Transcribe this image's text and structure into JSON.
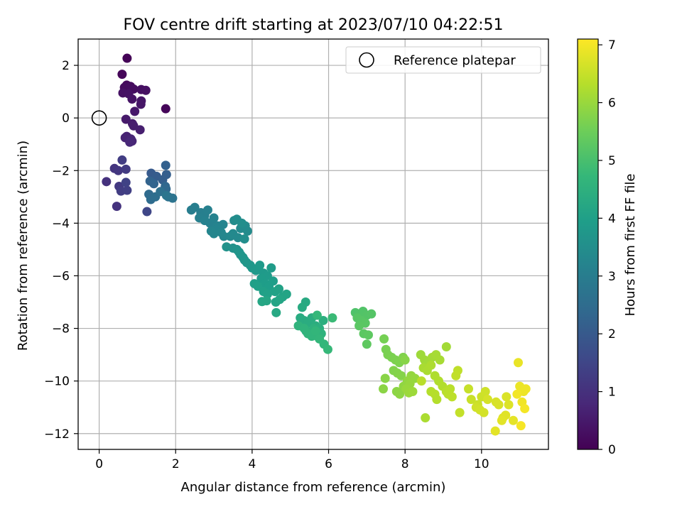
{
  "chart_data": {
    "type": "scatter",
    "title": "FOV centre drift starting at 2023/07/10 04:22:51",
    "xlabel": "Angular distance from reference (arcmin)",
    "ylabel": "Rotation from reference (arcmin)",
    "xlim": [
      -0.55,
      11.75
    ],
    "ylim": [
      -12.6,
      3.0
    ],
    "x_ticks": [
      0,
      2,
      4,
      6,
      8,
      10
    ],
    "y_ticks": [
      2,
      0,
      -2,
      -4,
      -6,
      -8,
      -10,
      -12
    ],
    "grid": true,
    "legend": {
      "position": "top-right",
      "entries": [
        "Reference platepar"
      ]
    },
    "reference_point": {
      "x": 0,
      "y": 0,
      "label": "Reference platepar"
    },
    "colorbar": {
      "label": "Hours from first FF file",
      "range": [
        0,
        7.1
      ],
      "ticks": [
        0,
        1,
        2,
        3,
        4,
        5,
        6,
        7
      ],
      "colormap": "viridis"
    },
    "colors": {
      "viridis": [
        "#440154",
        "#482878",
        "#3e4989",
        "#31688e",
        "#26828e",
        "#1f9e89",
        "#35b779",
        "#6ece58",
        "#b5de2b",
        "#fde725"
      ]
    },
    "series": [
      {
        "x": [
          0.73,
          0.6,
          0.72,
          0.66,
          0.82,
          0.9,
          1.1,
          1.22,
          0.62,
          0.77,
          0.86,
          1.1,
          1.09,
          0.93,
          1.74,
          0.7,
          0.87,
          0.9,
          1.07,
          0.72,
          0.68,
          0.83,
          0.86,
          0.8
        ],
        "y": [
          2.27,
          1.66,
          1.25,
          1.16,
          1.2,
          1.1,
          1.08,
          1.05,
          0.95,
          0.92,
          0.72,
          0.65,
          0.52,
          0.25,
          0.35,
          -0.05,
          -0.22,
          -0.3,
          -0.45,
          -0.7,
          -0.75,
          -0.8,
          -0.88,
          -0.92
        ],
        "hours": [
          0.05,
          0.1,
          0.15,
          0.2,
          0.22,
          0.25,
          0.28,
          0.3,
          0.32,
          0.35,
          0.38,
          0.4,
          0.42,
          0.45,
          0.1,
          0.5,
          0.55,
          0.58,
          0.6,
          0.65,
          0.68,
          0.72,
          0.75,
          0.8
        ]
      },
      {
        "x": [
          0.6,
          0.4,
          0.5,
          0.7,
          0.19,
          0.52,
          0.57,
          0.73,
          0.7,
          0.46,
          1.25
        ],
        "y": [
          -1.6,
          -1.92,
          -2.0,
          -1.95,
          -2.42,
          -2.6,
          -2.78,
          -2.75,
          -2.45,
          -3.36,
          -3.56
        ],
        "hours": [
          1.3,
          1.1,
          1.15,
          1.25,
          1.0,
          1.2,
          1.3,
          1.35,
          1.4,
          1.05,
          1.5
        ]
      },
      {
        "x": [
          1.36,
          1.5,
          1.66,
          1.76,
          1.74,
          1.33,
          1.43,
          1.73,
          1.75,
          1.3,
          1.35,
          1.47,
          1.6,
          1.81,
          1.92,
          1.76
        ],
        "y": [
          -2.1,
          -2.22,
          -2.35,
          -2.15,
          -1.8,
          -2.4,
          -2.5,
          -2.6,
          -2.7,
          -2.9,
          -3.1,
          -3.0,
          -2.8,
          -3.0,
          -3.05,
          -2.95
        ],
        "hours": [
          2.0,
          2.05,
          2.1,
          2.15,
          2.2,
          2.25,
          2.3,
          2.35,
          2.4,
          2.45,
          2.5,
          2.55,
          2.6,
          2.65,
          2.7,
          2.75
        ]
      },
      {
        "x": [
          2.41,
          2.5,
          2.66,
          2.76,
          2.84,
          2.62,
          2.76,
          2.9,
          3.0,
          3.09,
          3.24,
          3.1,
          2.93,
          3.0,
          3.19,
          3.26,
          3.43,
          3.5,
          3.63,
          3.7,
          3.82,
          3.88,
          3.53,
          3.6,
          3.73,
          3.8
        ],
        "y": [
          -3.5,
          -3.4,
          -3.6,
          -3.7,
          -3.5,
          -3.8,
          -3.9,
          -4.0,
          -3.8,
          -4.1,
          -4.05,
          -4.2,
          -4.3,
          -4.4,
          -4.35,
          -4.5,
          -4.5,
          -4.4,
          -4.55,
          -4.2,
          -4.1,
          -4.3,
          -3.9,
          -3.85,
          -4.0,
          -4.6
        ],
        "hours": [
          3.0,
          3.02,
          3.04,
          3.06,
          3.08,
          3.1,
          3.12,
          3.14,
          3.16,
          3.18,
          3.2,
          3.22,
          3.24,
          3.26,
          3.28,
          3.3,
          3.32,
          3.34,
          3.36,
          3.38,
          3.4,
          3.42,
          3.44,
          3.46,
          3.48,
          3.5
        ]
      },
      {
        "x": [
          3.33,
          3.5,
          3.6,
          3.7,
          3.8,
          3.66,
          3.76,
          3.86,
          3.95,
          4.0,
          4.1,
          4.2,
          4.3,
          4.4,
          4.5,
          4.24,
          4.34,
          4.44,
          4.55,
          4.06,
          4.15,
          4.3,
          4.4,
          4.6,
          4.7,
          4.8,
          4.9,
          4.62,
          4.72,
          4.38,
          4.26
        ],
        "y": [
          -4.9,
          -4.95,
          -5.0,
          -5.2,
          -5.4,
          -5.1,
          -5.3,
          -5.5,
          -5.6,
          -5.7,
          -5.8,
          -5.6,
          -5.9,
          -6.0,
          -5.7,
          -6.1,
          -6.3,
          -6.4,
          -6.2,
          -6.3,
          -6.4,
          -6.6,
          -6.7,
          -6.6,
          -6.5,
          -6.8,
          -6.7,
          -7.0,
          -6.9,
          -6.95,
          -6.98
        ],
        "hours": [
          3.6,
          3.62,
          3.64,
          3.66,
          3.68,
          3.7,
          3.72,
          3.74,
          3.76,
          3.78,
          3.8,
          3.82,
          3.84,
          3.86,
          3.88,
          3.9,
          3.92,
          3.94,
          3.96,
          3.98,
          4.0,
          4.02,
          4.04,
          4.06,
          4.08,
          4.1,
          4.12,
          4.14,
          4.16,
          4.18,
          4.2
        ]
      },
      {
        "x": [
          4.63,
          5.4,
          5.31,
          5.26,
          5.36,
          5.46,
          5.56,
          5.66,
          5.76,
          5.86,
          5.41,
          5.51,
          5.61,
          5.71,
          5.81,
          5.21,
          5.36,
          5.46,
          5.56,
          5.66,
          5.76,
          5.88,
          5.98,
          6.1,
          5.7
        ],
        "y": [
          -7.4,
          -7.0,
          -7.2,
          -7.6,
          -7.7,
          -7.8,
          -7.6,
          -7.9,
          -8.0,
          -7.7,
          -8.1,
          -8.2,
          -8.0,
          -8.3,
          -8.2,
          -7.9,
          -8.0,
          -8.2,
          -8.3,
          -8.1,
          -8.4,
          -8.6,
          -8.8,
          -7.6,
          -7.5
        ],
        "hours": [
          4.25,
          4.3,
          4.32,
          4.34,
          4.36,
          4.38,
          4.4,
          4.42,
          4.44,
          4.46,
          4.48,
          4.5,
          4.52,
          4.54,
          4.56,
          4.58,
          4.6,
          4.62,
          4.64,
          4.66,
          4.68,
          4.7,
          4.75,
          4.8,
          4.72
        ]
      },
      {
        "x": [
          6.7,
          6.8,
          6.9,
          7.0,
          7.12,
          6.75,
          6.86,
          6.96,
          6.8,
          6.92,
          7.04,
          7.0
        ],
        "y": [
          -7.4,
          -7.45,
          -7.35,
          -7.5,
          -7.45,
          -7.6,
          -7.7,
          -7.8,
          -7.9,
          -8.2,
          -8.25,
          -8.6
        ],
        "hours": [
          5.1,
          5.12,
          5.14,
          5.16,
          5.18,
          5.2,
          5.22,
          5.24,
          5.26,
          5.28,
          5.3,
          5.32
        ]
      },
      {
        "x": [
          7.45,
          7.5,
          7.55,
          7.65,
          7.75,
          7.85,
          7.95,
          7.7,
          7.8,
          7.9,
          8.0,
          7.48,
          7.43,
          7.78,
          7.86,
          7.96,
          8.06,
          8.16,
          8.26,
          8.13,
          8.03,
          8.1,
          8.2
        ],
        "y": [
          -8.4,
          -8.8,
          -9.0,
          -9.1,
          -9.2,
          -9.3,
          -9.1,
          -9.6,
          -9.7,
          -9.8,
          -9.2,
          -9.9,
          -10.3,
          -10.4,
          -10.5,
          -10.2,
          -10.0,
          -9.8,
          -9.9,
          -10.1,
          -10.3,
          -10.45,
          -10.4
        ],
        "hours": [
          5.6,
          5.62,
          5.64,
          5.66,
          5.68,
          5.7,
          5.72,
          5.74,
          5.76,
          5.78,
          5.8,
          5.82,
          5.84,
          5.86,
          5.88,
          5.9,
          5.92,
          5.94,
          5.96,
          5.98,
          6.0,
          6.02,
          6.04
        ]
      },
      {
        "x": [
          8.41,
          8.51,
          8.61,
          8.71,
          8.81,
          8.91,
          8.48,
          8.58,
          8.68,
          8.78,
          8.88,
          8.98,
          8.68,
          8.78,
          9.08,
          9.18,
          9.13,
          9.23,
          9.08,
          9.38,
          9.33,
          9.43,
          8.83,
          8.53,
          8.43
        ],
        "y": [
          -9.0,
          -9.2,
          -9.3,
          -9.1,
          -9.0,
          -9.2,
          -9.5,
          -9.6,
          -9.4,
          -9.8,
          -10.0,
          -10.2,
          -10.4,
          -10.5,
          -10.4,
          -10.3,
          -10.5,
          -10.6,
          -8.7,
          -9.6,
          -9.8,
          -11.2,
          -10.7,
          -11.4,
          -10.0
        ],
        "hours": [
          6.05,
          6.08,
          6.1,
          6.12,
          6.14,
          6.16,
          6.18,
          6.2,
          6.22,
          6.24,
          6.26,
          6.28,
          6.3,
          6.32,
          6.34,
          6.36,
          6.38,
          6.4,
          6.1,
          6.42,
          6.44,
          6.46,
          6.3,
          6.2,
          6.35
        ]
      },
      {
        "x": [
          9.66,
          9.73,
          9.9,
          10.0,
          10.1,
          9.86,
          9.96,
          10.06,
          10.16,
          10.38,
          10.45,
          10.65,
          10.71,
          10.56,
          10.63,
          10.53,
          10.36,
          10.83,
          10.96,
          11.0,
          11.1,
          11.16,
          11.06,
          10.93,
          11.13,
          11.03
        ],
        "y": [
          -10.3,
          -10.7,
          -10.9,
          -10.6,
          -10.4,
          -11.0,
          -11.1,
          -11.2,
          -10.7,
          -10.8,
          -10.9,
          -10.6,
          -10.9,
          -11.4,
          -11.3,
          -11.5,
          -11.9,
          -11.5,
          -9.3,
          -10.2,
          -10.4,
          -10.3,
          -10.8,
          -10.5,
          -11.05,
          -11.7
        ],
        "hours": [
          6.5,
          6.52,
          6.54,
          6.56,
          6.58,
          6.6,
          6.62,
          6.64,
          6.66,
          6.68,
          6.7,
          6.72,
          6.74,
          6.76,
          6.78,
          6.8,
          6.82,
          6.84,
          6.88,
          6.9,
          6.92,
          6.94,
          6.96,
          6.98,
          7.0,
          7.02
        ]
      }
    ]
  }
}
